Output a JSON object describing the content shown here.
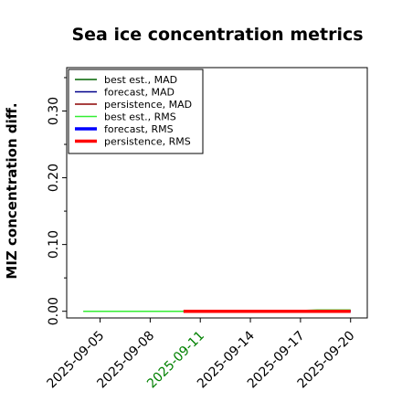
{
  "chart_data": {
    "type": "line",
    "title": "Sea ice concentration metrics",
    "xlabel": "",
    "ylabel": "MIZ concentration diff.",
    "x_range": [
      "2025-09-03",
      "2025-09-21"
    ],
    "ylim": [
      -0.01,
      0.365
    ],
    "x_ticks": [
      "2025-09-05",
      "2025-09-08",
      "2025-09-11",
      "2025-09-14",
      "2025-09-17",
      "2025-09-20"
    ],
    "x_tick_colors": [
      "#000000",
      "#000000",
      "#008000",
      "#000000",
      "#000000",
      "#000000"
    ],
    "y_ticks": [
      "0.00",
      "0.10",
      "0.20",
      "0.30"
    ],
    "y_tick_values": [
      0.0,
      0.1,
      0.2,
      0.3
    ],
    "y_minor_values": [
      0.05,
      0.15,
      0.25,
      0.35
    ],
    "grid": false,
    "legend_position": "top-left",
    "series": [
      {
        "name": "best est., MAD",
        "color": "#006400",
        "width": 1.5,
        "x": [
          "2025-09-04",
          "2025-09-17",
          "2025-09-20"
        ],
        "y": [
          0.0,
          0.0,
          0.001
        ]
      },
      {
        "name": "forecast,  MAD",
        "color": "#00008b",
        "width": 1.5,
        "x": [
          "2025-09-10",
          "2025-09-20"
        ],
        "y": [
          0.0,
          0.0
        ]
      },
      {
        "name": "persistence, MAD",
        "color": "#8b0000",
        "width": 1.5,
        "x": [
          "2025-09-10",
          "2025-09-20"
        ],
        "y": [
          0.0,
          0.0
        ]
      },
      {
        "name": "best est., RMS",
        "color": "#33ee33",
        "width": 1.5,
        "x": [
          "2025-09-04",
          "2025-09-16",
          "2025-09-18",
          "2025-09-20"
        ],
        "y": [
          0.0,
          0.0,
          0.002,
          0.002
        ]
      },
      {
        "name": "forecast,  RMS",
        "color": "#0000ff",
        "width": 3.5,
        "x": [
          "2025-09-10",
          "2025-09-20"
        ],
        "y": [
          0.0,
          0.0
        ]
      },
      {
        "name": "persistence, RMS",
        "color": "#ff0000",
        "width": 3.5,
        "x": [
          "2025-09-10",
          "2025-09-20"
        ],
        "y": [
          0.0,
          0.0
        ]
      }
    ]
  }
}
